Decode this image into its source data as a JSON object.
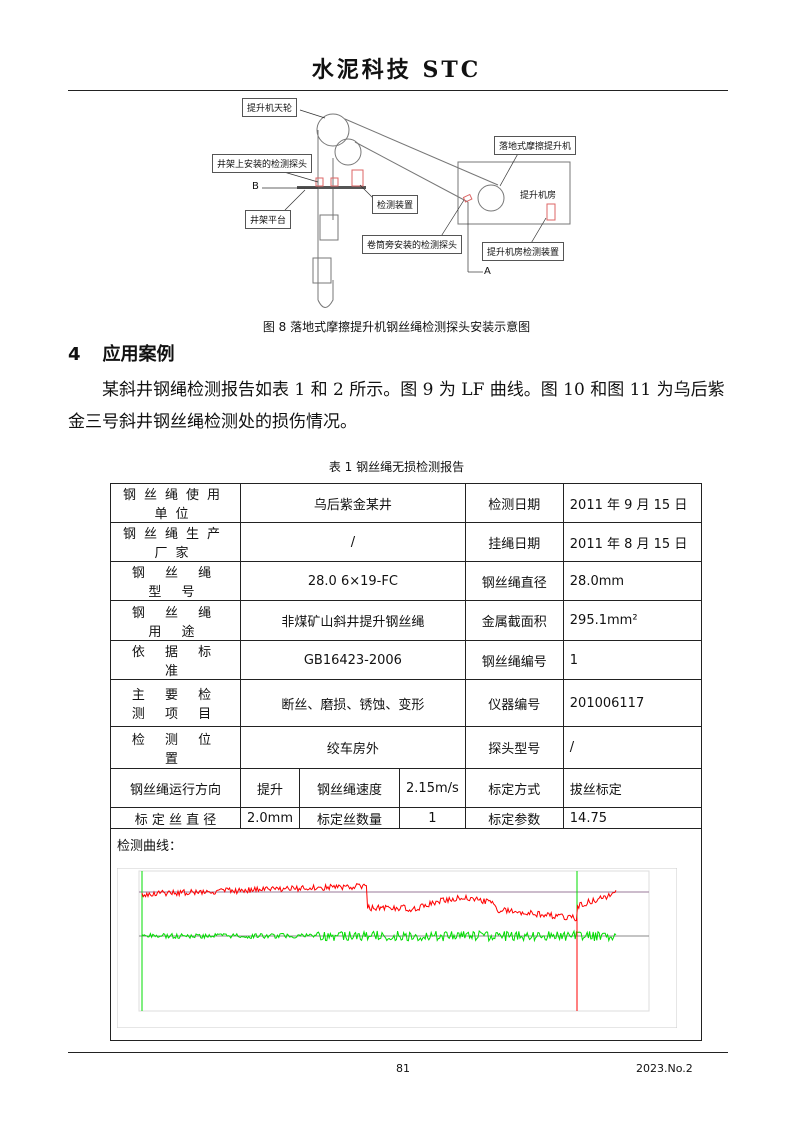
{
  "header": {
    "title": "水泥科技 STC"
  },
  "figure8": {
    "labels": {
      "sheave": "提升机天轮",
      "probe_headframe": "井架上安装的检测探头",
      "b": "B",
      "platform": "井架平台",
      "device": "检测装置",
      "hoist": "落地式摩擦提升机",
      "room": "提升机房",
      "probe_drum": "卷筒旁安装的检测探头",
      "room_device": "提升机房检测装置",
      "a": "A"
    },
    "caption": "图 8  落地式摩擦提升机钢丝绳检测探头安装示意图"
  },
  "section": {
    "number": "4",
    "title": "应用案例"
  },
  "paragraph": "某斜井钢绳检测报告如表 1 和 2 所示。图 9 为 LF 曲线。图 10 和图 11 为乌后紫金三号斜井钢丝绳检测处的损伤情况。",
  "table1": {
    "caption": "表 1  钢丝绳无损检测报告",
    "rows": [
      [
        "钢丝绳使用单位",
        "乌后紫金某井",
        "检测日期",
        "2011 年 9 月 15 日"
      ],
      [
        "钢丝绳生产厂家",
        "/",
        "挂绳日期",
        "2011 年 8 月 15 日"
      ],
      [
        "钢 丝 绳 型 号",
        "28.0 6×19-FC",
        "钢丝绳直径",
        "28.0mm"
      ],
      [
        "钢 丝 绳 用 途",
        "非煤矿山斜井提升钢丝绳",
        "金属截面积",
        "295.1mm²"
      ],
      [
        "依 据 标 准",
        "GB16423-2006",
        "钢丝绳编号",
        "1"
      ],
      [
        "主 要 检 测 项 目",
        "断丝、磨损、锈蚀、变形",
        "仪器编号",
        "201006117"
      ],
      [
        "检 测 位 置",
        "绞车房外",
        "探头型号",
        "/"
      ]
    ],
    "row8": [
      "钢丝绳运行方向",
      "提升",
      "钢丝绳速度",
      "2.15m/s",
      "标定方式",
      "拔丝标定"
    ],
    "row9": [
      "标 定 丝 直 径",
      "2.0mm",
      "标定丝数量",
      "1",
      "标定参数",
      "14.75"
    ],
    "curve_label": "检测曲线："
  },
  "colors": {
    "lf": "#ff0000",
    "la": "#00dd00",
    "marker": "#9a7a9a"
  },
  "footer": {
    "page": "81",
    "issue": "2023.No.2"
  }
}
